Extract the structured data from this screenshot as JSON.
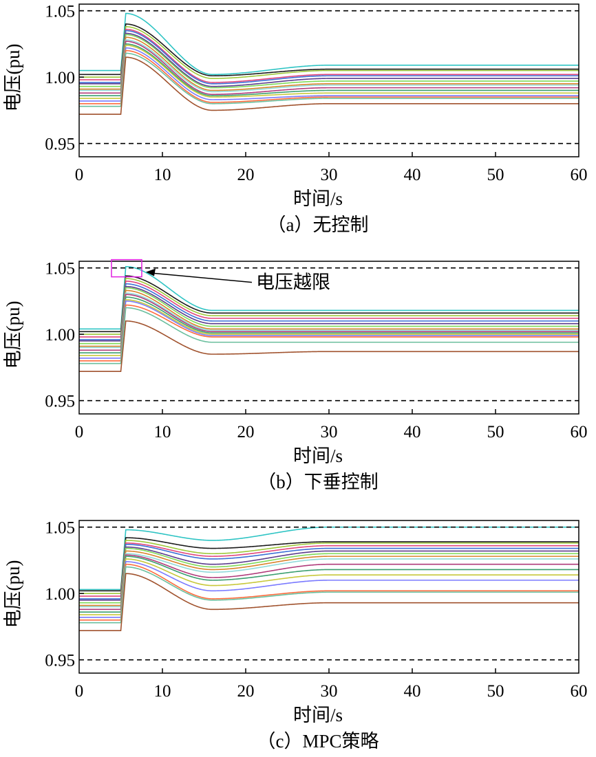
{
  "colors": {
    "axis": "#000000",
    "limit_line": "#000000",
    "highlight_box": "#e020e0",
    "series_palette": [
      "#2ec4c4",
      "#1a1a1a",
      "#9ec83a",
      "#e0457b",
      "#3b6fd6",
      "#5a3c8c",
      "#7ed957",
      "#d9822b",
      "#8fd9d9",
      "#b03a7a",
      "#3a9e6f",
      "#c8c83a",
      "#7a7aff",
      "#ff6b3d",
      "#6bbf9e",
      "#a0522d"
    ]
  },
  "chart_data": [
    {
      "id": "a",
      "type": "line",
      "caption": "（a）无控制",
      "xlabel": "时间/s",
      "ylabel": "电压(pu)",
      "xlim": [
        0,
        60
      ],
      "ylim": [
        0.94,
        1.055
      ],
      "xticks": [
        "0",
        "10",
        "20",
        "30",
        "40",
        "50",
        "60"
      ],
      "yticks": [
        "0.95",
        "1.00",
        "1.05"
      ],
      "limits": [
        1.05,
        0.95
      ],
      "step_time": 5,
      "series": [
        {
          "name": "s1",
          "pre": 1.005,
          "peak": 1.048,
          "min": 1.002,
          "final": 1.009
        },
        {
          "name": "s2",
          "pre": 1.002,
          "peak": 1.04,
          "min": 1.001,
          "final": 1.006
        },
        {
          "name": "s3",
          "pre": 1.0,
          "peak": 1.038,
          "min": 0.999,
          "final": 1.005
        },
        {
          "name": "s4",
          "pre": 0.998,
          "peak": 1.036,
          "min": 0.996,
          "final": 1.002
        },
        {
          "name": "s5",
          "pre": 0.996,
          "peak": 1.035,
          "min": 0.995,
          "final": 1.001
        },
        {
          "name": "s6",
          "pre": 0.995,
          "peak": 1.033,
          "min": 0.993,
          "final": 0.999
        },
        {
          "name": "s7",
          "pre": 0.993,
          "peak": 1.032,
          "min": 0.992,
          "final": 0.997
        },
        {
          "name": "s8",
          "pre": 0.991,
          "peak": 1.03,
          "min": 0.99,
          "final": 0.995
        },
        {
          "name": "s9",
          "pre": 0.99,
          "peak": 1.028,
          "min": 0.989,
          "final": 0.994
        },
        {
          "name": "s10",
          "pre": 0.988,
          "peak": 1.027,
          "min": 0.987,
          "final": 0.992
        },
        {
          "name": "s11",
          "pre": 0.986,
          "peak": 1.025,
          "min": 0.986,
          "final": 0.99
        },
        {
          "name": "s12",
          "pre": 0.984,
          "peak": 1.024,
          "min": 0.985,
          "final": 0.988
        },
        {
          "name": "s13",
          "pre": 0.982,
          "peak": 1.022,
          "min": 0.983,
          "final": 0.986
        },
        {
          "name": "s14",
          "pre": 0.98,
          "peak": 1.02,
          "min": 0.981,
          "final": 0.985
        },
        {
          "name": "s15",
          "pre": 0.978,
          "peak": 1.018,
          "min": 0.98,
          "final": 0.984
        },
        {
          "name": "s16",
          "pre": 0.972,
          "peak": 1.015,
          "min": 0.975,
          "final": 0.98
        }
      ]
    },
    {
      "id": "b",
      "type": "line",
      "caption": "（b）下垂控制",
      "xlabel": "时间/s",
      "ylabel": "电压(pu)",
      "xlim": [
        0,
        60
      ],
      "ylim": [
        0.94,
        1.055
      ],
      "xticks": [
        "0",
        "10",
        "20",
        "30",
        "40",
        "50",
        "60"
      ],
      "yticks": [
        "0.95",
        "1.00",
        "1.05"
      ],
      "limits": [
        1.05,
        0.95
      ],
      "step_time": 5,
      "annotation": {
        "text": "电压越限",
        "x": 5.7,
        "y": 1.05
      },
      "series": [
        {
          "name": "s1",
          "pre": 1.004,
          "peak": 1.051,
          "min": 1.018,
          "final": 1.018
        },
        {
          "name": "s2",
          "pre": 1.002,
          "peak": 1.044,
          "min": 1.016,
          "final": 1.016
        },
        {
          "name": "s3",
          "pre": 1.0,
          "peak": 1.042,
          "min": 1.014,
          "final": 1.014
        },
        {
          "name": "s4",
          "pre": 0.998,
          "peak": 1.04,
          "min": 1.012,
          "final": 1.012
        },
        {
          "name": "s5",
          "pre": 0.996,
          "peak": 1.038,
          "min": 1.01,
          "final": 1.01
        },
        {
          "name": "s6",
          "pre": 0.995,
          "peak": 1.036,
          "min": 1.008,
          "final": 1.008
        },
        {
          "name": "s7",
          "pre": 0.993,
          "peak": 1.035,
          "min": 1.006,
          "final": 1.006
        },
        {
          "name": "s8",
          "pre": 0.991,
          "peak": 1.033,
          "min": 1.004,
          "final": 1.004
        },
        {
          "name": "s9",
          "pre": 0.99,
          "peak": 1.031,
          "min": 1.003,
          "final": 1.003
        },
        {
          "name": "s10",
          "pre": 0.988,
          "peak": 1.03,
          "min": 1.002,
          "final": 1.002
        },
        {
          "name": "s11",
          "pre": 0.986,
          "peak": 1.028,
          "min": 1.001,
          "final": 1.001
        },
        {
          "name": "s12",
          "pre": 0.984,
          "peak": 1.026,
          "min": 1.0,
          "final": 1.0
        },
        {
          "name": "s13",
          "pre": 0.982,
          "peak": 1.025,
          "min": 0.999,
          "final": 0.999
        },
        {
          "name": "s14",
          "pre": 0.98,
          "peak": 1.022,
          "min": 0.998,
          "final": 0.998
        },
        {
          "name": "s15",
          "pre": 0.978,
          "peak": 1.02,
          "min": 0.994,
          "final": 0.994
        },
        {
          "name": "s16",
          "pre": 0.972,
          "peak": 1.01,
          "min": 0.985,
          "final": 0.987
        }
      ]
    },
    {
      "id": "c",
      "type": "line",
      "caption": "（c）MPC策略",
      "xlabel": "时间/s",
      "ylabel": "电压(pu)",
      "xlim": [
        0,
        60
      ],
      "ylim": [
        0.94,
        1.055
      ],
      "xticks": [
        "0",
        "10",
        "20",
        "30",
        "40",
        "50",
        "60"
      ],
      "yticks": [
        "0.95",
        "1.00",
        "1.05"
      ],
      "limits": [
        1.05,
        0.95
      ],
      "step_time": 5,
      "series": [
        {
          "name": "s1",
          "pre": 1.003,
          "peak": 1.048,
          "min": 1.04,
          "final": 1.05
        },
        {
          "name": "s2",
          "pre": 1.002,
          "peak": 1.042,
          "min": 1.034,
          "final": 1.039
        },
        {
          "name": "s3",
          "pre": 1.0,
          "peak": 1.04,
          "min": 1.03,
          "final": 1.038
        },
        {
          "name": "s4",
          "pre": 0.998,
          "peak": 1.038,
          "min": 1.028,
          "final": 1.036
        },
        {
          "name": "s5",
          "pre": 0.996,
          "peak": 1.037,
          "min": 1.026,
          "final": 1.034
        },
        {
          "name": "s6",
          "pre": 0.995,
          "peak": 1.035,
          "min": 1.022,
          "final": 1.032
        },
        {
          "name": "s7",
          "pre": 0.993,
          "peak": 1.034,
          "min": 1.02,
          "final": 1.03
        },
        {
          "name": "s8",
          "pre": 0.991,
          "peak": 1.032,
          "min": 1.018,
          "final": 1.028
        },
        {
          "name": "s9",
          "pre": 0.99,
          "peak": 1.03,
          "min": 1.016,
          "final": 1.026
        },
        {
          "name": "s10",
          "pre": 0.988,
          "peak": 1.029,
          "min": 1.012,
          "final": 1.022
        },
        {
          "name": "s11",
          "pre": 0.986,
          "peak": 1.028,
          "min": 1.01,
          "final": 1.018
        },
        {
          "name": "s12",
          "pre": 0.984,
          "peak": 1.026,
          "min": 1.006,
          "final": 1.014
        },
        {
          "name": "s13",
          "pre": 0.982,
          "peak": 1.024,
          "min": 1.002,
          "final": 1.01
        },
        {
          "name": "s14",
          "pre": 0.98,
          "peak": 1.022,
          "min": 0.996,
          "final": 1.002
        },
        {
          "name": "s15",
          "pre": 0.978,
          "peak": 1.02,
          "min": 0.995,
          "final": 1.001
        },
        {
          "name": "s16",
          "pre": 0.972,
          "peak": 1.015,
          "min": 0.988,
          "final": 0.993
        }
      ]
    }
  ]
}
